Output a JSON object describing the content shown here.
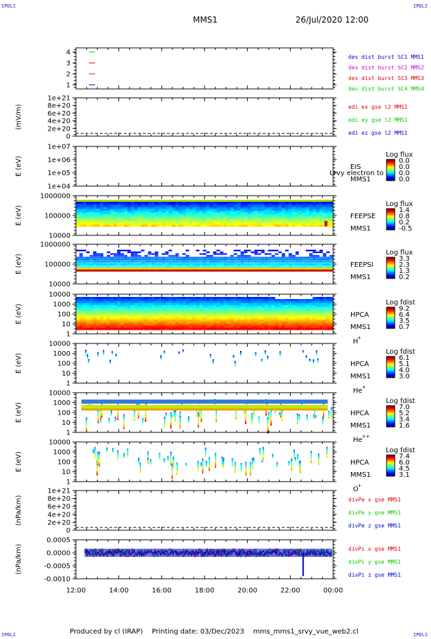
{
  "corners": {
    "tl": "IPDLI",
    "tr": "IPDLI",
    "bl": "IPDLI",
    "br": "IPDLI"
  },
  "header": {
    "spacecraft": "MMS1",
    "datetime": "26/Jul/2020 12:00"
  },
  "footer": {
    "produced_by": "Produced by cl (IRAP)",
    "printing_date": "Printing date: 03/Dec/2023",
    "script_name": "mms_mms1_srvy_vue_web2.cl"
  },
  "colors": {
    "red": "#dd0000",
    "green": "#00cc00",
    "blue": "#0000cc",
    "magenta": "#cc00cc"
  },
  "chart_data": [
    {
      "id": "des",
      "type": "line",
      "yticks": [
        "1",
        "2",
        "3",
        "4"
      ],
      "legend": [
        {
          "text": "des dist burst SC1 MMS1",
          "color": "#0000cc"
        },
        {
          "text": "des dist burst SC2 MMS2",
          "color": "#cc00cc"
        },
        {
          "text": "des dist burst SC3 MMS3",
          "color": "#dd0000"
        },
        {
          "text": "des dist burst SC4 MMS4",
          "color": "#00cc00"
        }
      ],
      "series": [
        {
          "x": [
            12.6,
            12.9
          ],
          "y": 4,
          "color": "#00cc00"
        },
        {
          "x": [
            12.6,
            12.9
          ],
          "y": 3,
          "color": "#dd0000"
        },
        {
          "x": [
            12.6,
            12.9
          ],
          "y": 2,
          "color": "#cc00cc"
        },
        {
          "x": [
            12.6,
            12.9
          ],
          "y": 1,
          "color": "#0000cc"
        }
      ]
    },
    {
      "id": "edi",
      "type": "line",
      "ylabel": "(mV/m)",
      "yticks": [
        "0",
        "2e+20",
        "4e+20",
        "6e+20",
        "8e+20",
        "1e+21"
      ],
      "legend": [
        {
          "text": "edi ex gse l2 MMS1",
          "color": "#dd0000"
        },
        {
          "text": "edi ey gse l2 MMS1",
          "color": "#00cc00"
        },
        {
          "text": "edi ez gse l2 MMS1",
          "color": "#0000cc"
        }
      ]
    },
    {
      "id": "eis",
      "type": "heatmap",
      "ylabel": "E (eV)",
      "yticks": [
        "1e+04",
        "1e+05",
        "1e+06",
        "1e+07"
      ],
      "instrument": [
        "EIS",
        "MMS1"
      ],
      "overlay": "Lrvy electron to",
      "cbar_title": "Log flux",
      "cbar_ticks": [
        "0.0",
        "0.0",
        "0.0",
        "0.0"
      ]
    },
    {
      "id": "feeps_e",
      "type": "heatmap",
      "ylabel": "E (eV)",
      "yticks": [
        "10000",
        "100000",
        "1000000"
      ],
      "instrument": [
        "FEEPSE",
        "MMS1"
      ],
      "cbar_title": "Log flux",
      "cbar_ticks": [
        "1.4",
        "0.8",
        "0.2",
        "-0.5"
      ]
    },
    {
      "id": "feeps_i",
      "type": "heatmap",
      "ylabel": "E (eV)",
      "yticks": [
        "10000",
        "100000",
        "1000000"
      ],
      "instrument": [
        "FEEPSI",
        "MMS1"
      ],
      "cbar_title": "Log flux",
      "cbar_ticks": [
        "3.3",
        "2.3",
        "1.3",
        "0.2"
      ]
    },
    {
      "id": "hpca_h",
      "type": "heatmap",
      "ylabel": "E (eV)",
      "yticks": [
        "1",
        "10",
        "100",
        "1000",
        "10000"
      ],
      "instrument": [
        "HPCA",
        "MMS1"
      ],
      "species": "H",
      "charge": "+",
      "cbar_title": "Log fdist",
      "cbar_ticks": [
        "9.2",
        "6.4",
        "3.5",
        "0.7"
      ]
    },
    {
      "id": "hpca_he1",
      "type": "heatmap",
      "ylabel": "E (eV)",
      "yticks": [
        "1",
        "10",
        "100",
        "1000",
        "10000"
      ],
      "instrument": [
        "HPCA",
        "MMS1"
      ],
      "species": "He",
      "charge": "+",
      "cbar_title": "Log fdist",
      "cbar_ticks": [
        "6.1",
        "5.1",
        "4.0",
        "3.0"
      ]
    },
    {
      "id": "hpca_he2",
      "type": "heatmap",
      "ylabel": "E (eV)",
      "yticks": [
        "1",
        "10",
        "100",
        "1000",
        "10000"
      ],
      "instrument": [
        "HPCA",
        "MMS1"
      ],
      "species": "He",
      "charge": "++",
      "cbar_title": "Log fdist",
      "cbar_ticks": [
        "7.0",
        "5.2",
        "3.4",
        "1.6"
      ]
    },
    {
      "id": "hpca_o",
      "type": "heatmap",
      "ylabel": "E (eV)",
      "yticks": [
        "1",
        "10",
        "100",
        "1000",
        "10000"
      ],
      "instrument": [
        "HPCA",
        "MMS1"
      ],
      "species": "O",
      "charge": "+",
      "cbar_title": "Log fdist",
      "cbar_ticks": [
        "7.4",
        "6.0",
        "4.5",
        "3.1"
      ]
    },
    {
      "id": "divpe",
      "type": "line",
      "ylabel": "(nPa/km)",
      "yticks": [
        "0",
        "2e+20",
        "4e+20",
        "6e+20",
        "8e+20",
        "1e+21"
      ],
      "legend": [
        {
          "text": "divPe x gse MMS1",
          "color": "#dd0000"
        },
        {
          "text": "divPe y gse MMS1",
          "color": "#00cc00"
        },
        {
          "text": "divPe z gse MMS1",
          "color": "#0000cc"
        }
      ]
    },
    {
      "id": "divpi",
      "type": "line",
      "ylabel": "(nPa/km)",
      "yticks": [
        "-0.0010",
        "-0.0005",
        "0.0000",
        "0.0005"
      ],
      "legend": [
        {
          "text": "divPi x gse MMS1",
          "color": "#dd0000"
        },
        {
          "text": "divPi y gse MMS1",
          "color": "#00cc00"
        },
        {
          "text": "divPi z gse MMS1",
          "color": "#0000cc"
        }
      ]
    }
  ],
  "xaxis": {
    "ticks": [
      "12:00",
      "14:00",
      "16:00",
      "18:00",
      "20:00",
      "22:00",
      "00:00"
    ],
    "range": [
      12,
      24
    ]
  }
}
